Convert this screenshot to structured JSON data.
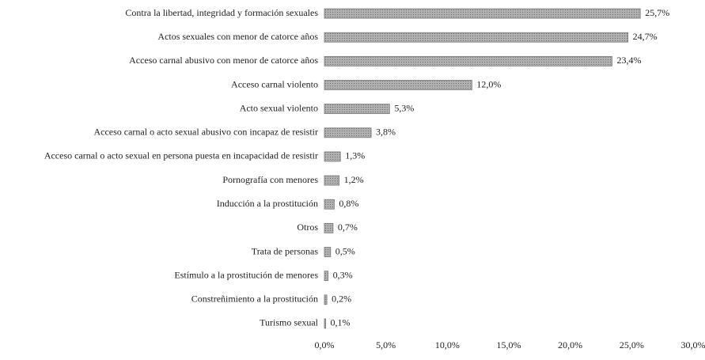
{
  "chart_data": {
    "type": "hbar",
    "categories": [
      "Contra la libertad, integridad y formación sexuales",
      "Actos sexuales con menor de catorce años",
      "Acceso carnal abusivo con menor de catorce años",
      "Acceso carnal violento",
      "Acto sexual violento",
      "Acceso carnal o acto sexual abusivo con incapaz de resistir",
      "Acceso carnal o acto sexual en persona puesta en incapacidad de resistir",
      "Pornografía con menores",
      "Inducción a la prostitución",
      "Otros",
      "Trata de personas",
      "Estímulo a la prostitución de menores",
      "Constreñimiento a la prostitución",
      "Turismo sexual"
    ],
    "values": [
      25.7,
      24.7,
      23.4,
      12.0,
      5.3,
      3.8,
      1.3,
      1.2,
      0.8,
      0.7,
      0.5,
      0.3,
      0.2,
      0.1
    ],
    "value_labels": [
      "25,7%",
      "24,7%",
      "23,4%",
      "12,0%",
      "5,3%",
      "3,8%",
      "1,3%",
      "1,2%",
      "0,8%",
      "0,7%",
      "0,5%",
      "0,3%",
      "0,2%",
      "0,1%"
    ],
    "color": "#9c9c9c",
    "xlim": [
      0,
      30
    ],
    "xticks": [
      {
        "value": 0,
        "label": "0,0%"
      },
      {
        "value": 5,
        "label": "5,0%"
      },
      {
        "value": 10,
        "label": "10,0%"
      },
      {
        "value": 15,
        "label": "15,0%"
      },
      {
        "value": 20,
        "label": "20,0%"
      },
      {
        "value": 25,
        "label": "25,0%"
      },
      {
        "value": 30,
        "label": "30,0%"
      }
    ],
    "grid": false
  }
}
